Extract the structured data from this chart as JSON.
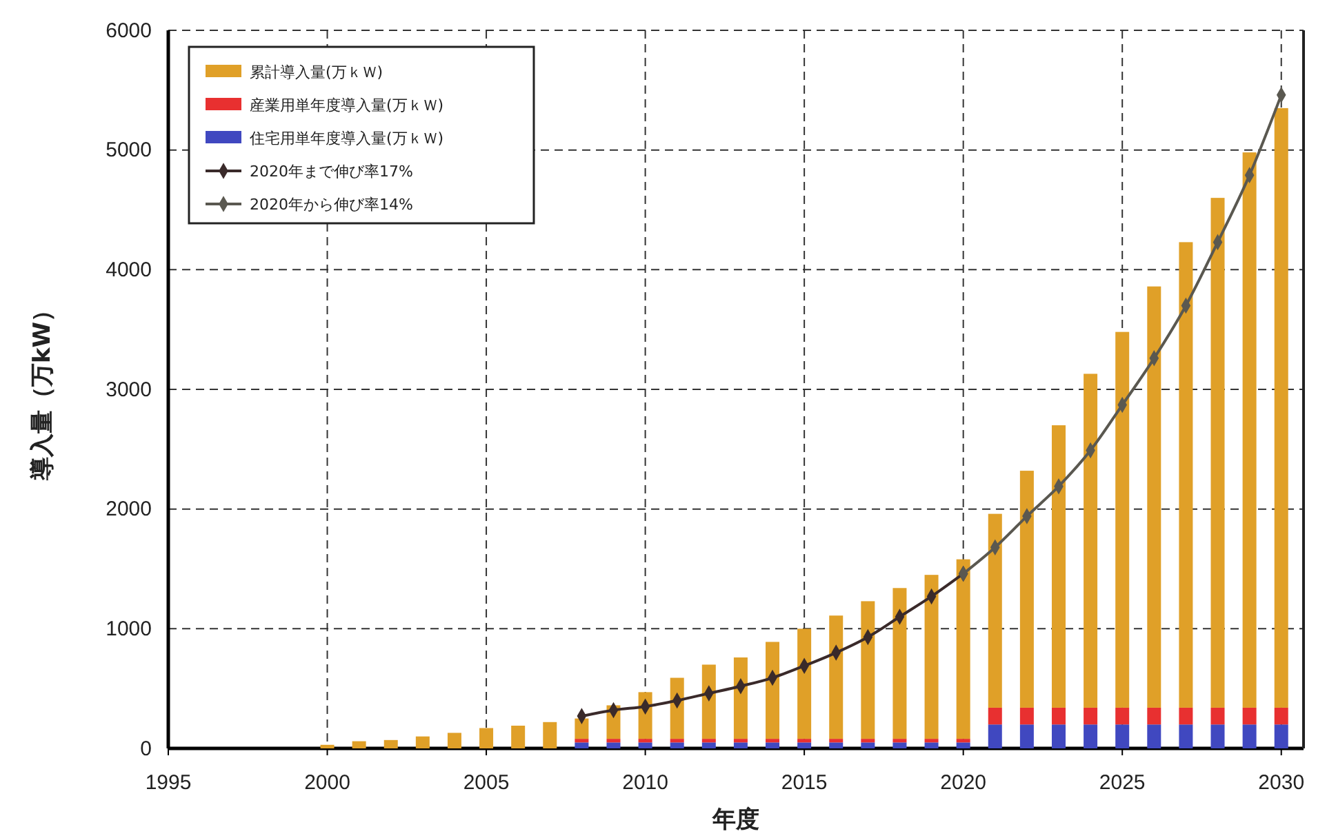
{
  "chart_data": {
    "type": "bar",
    "xlabel": "年度",
    "ylabel": "導入量（万kW）",
    "x": [
      2000,
      2001,
      2002,
      2003,
      2004,
      2005,
      2006,
      2007,
      2008,
      2009,
      2010,
      2011,
      2012,
      2013,
      2014,
      2015,
      2016,
      2017,
      2018,
      2019,
      2020,
      2021,
      2022,
      2023,
      2024,
      2025,
      2026,
      2027,
      2028,
      2029,
      2030
    ],
    "xlim": [
      1995,
      2030.7
    ],
    "xticks": [
      1995,
      2000,
      2005,
      2010,
      2015,
      2020,
      2025,
      2030
    ],
    "ylim": [
      0,
      6000
    ],
    "yticks": [
      0,
      1000,
      2000,
      3000,
      4000,
      5000,
      6000
    ],
    "stacked": true,
    "grid": true,
    "legend": "top left",
    "series": [
      {
        "name": "住宅用単年度導入量(万ｋＷ)",
        "color": "#4048c0",
        "values": [
          null,
          null,
          null,
          null,
          null,
          null,
          null,
          null,
          50,
          50,
          50,
          50,
          50,
          50,
          50,
          50,
          50,
          50,
          50,
          50,
          50,
          200,
          200,
          200,
          200,
          200,
          200,
          200,
          200,
          200,
          200
        ]
      },
      {
        "name": "産業用単年度導入量(万ｋＷ)",
        "color": "#e83030",
        "values": [
          null,
          null,
          null,
          null,
          null,
          null,
          null,
          null,
          30,
          30,
          30,
          30,
          30,
          30,
          30,
          30,
          30,
          30,
          30,
          30,
          30,
          140,
          140,
          140,
          140,
          140,
          140,
          140,
          140,
          140,
          140
        ]
      },
      {
        "name": "累計導入量(万ｋＷ)",
        "color": "#e0a028",
        "values": [
          30,
          60,
          70,
          100,
          130,
          170,
          190,
          220,
          170,
          280,
          390,
          510,
          620,
          680,
          810,
          920,
          1030,
          1150,
          1260,
          1370,
          1500,
          1620,
          1980,
          2360,
          2790,
          3140,
          3520,
          3890,
          4260,
          4640,
          5010
        ]
      },
      {
        "name": "2020年まで伸び率17%",
        "type": "line",
        "color": "#3a2a2a",
        "marker": "diamond",
        "x": [
          2008,
          2009,
          2010,
          2011,
          2012,
          2013,
          2014,
          2015,
          2016,
          2017,
          2018,
          2019,
          2020
        ],
        "values": [
          270,
          320,
          350,
          400,
          460,
          520,
          590,
          690,
          800,
          930,
          1100,
          1270,
          1460
        ]
      },
      {
        "name": "2020年から伸び率14%",
        "type": "line",
        "color": "#5a5850",
        "marker": "diamond",
        "x": [
          2020,
          2021,
          2022,
          2023,
          2024,
          2025,
          2026,
          2027,
          2028,
          2029,
          2030
        ],
        "values": [
          1460,
          1680,
          1940,
          2190,
          2490,
          2870,
          3260,
          3700,
          4230,
          4790,
          5460
        ]
      }
    ]
  }
}
